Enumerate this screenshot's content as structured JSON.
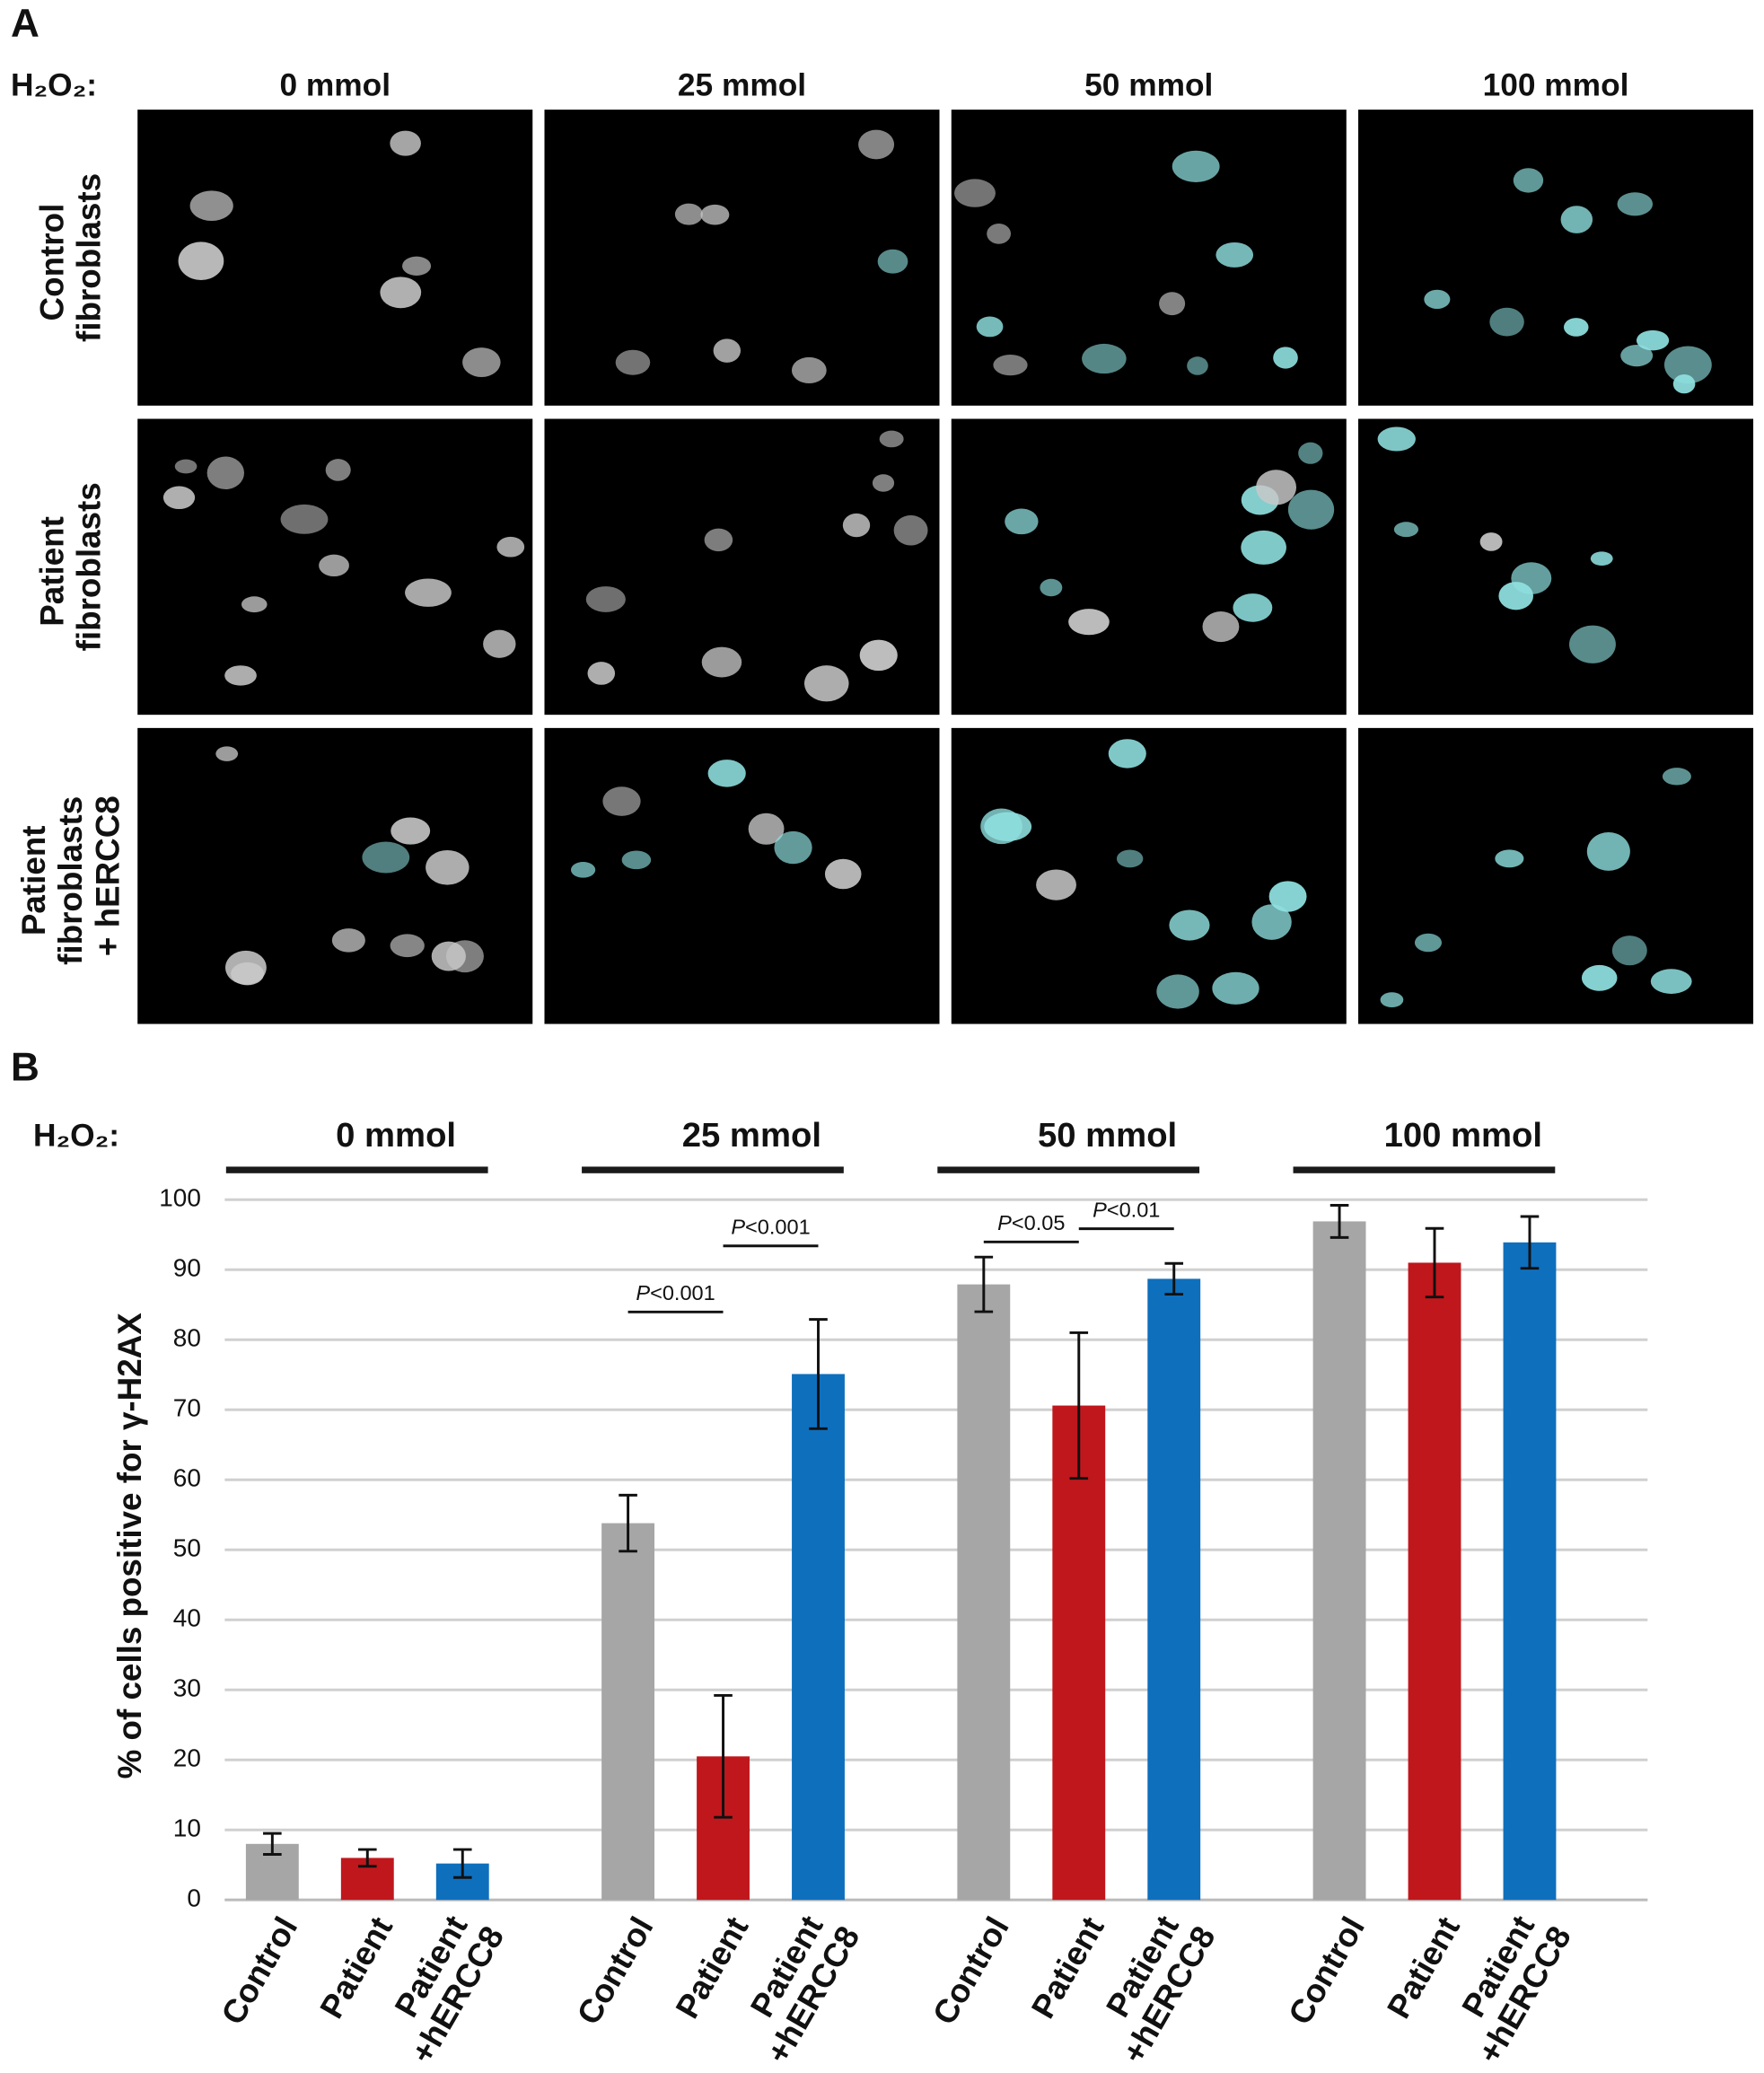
{
  "panel_a": {
    "label": "A",
    "treatment_label": "H₂O₂:",
    "columns": [
      "0 mmol",
      "25 mmol",
      "50 mmol",
      "100 mmol"
    ],
    "rows": [
      "Control fibroblasts",
      "Patient fibroblasts",
      "Patient fibroblasts + hERCC8"
    ]
  },
  "chart_data": {
    "type": "bar",
    "panel_label": "B",
    "treatment_label": "H₂O₂:",
    "y_label": "% of cells positive for γ-H2AX",
    "categories": [
      "0 mmol",
      "25 mmol",
      "50 mmol",
      "100 mmol"
    ],
    "series": [
      {
        "name": "Control",
        "color": "#a6a6a6",
        "values": [
          8,
          53.8,
          87.9,
          96.9
        ],
        "errors": [
          1.5,
          4,
          3.9,
          2.3
        ]
      },
      {
        "name": "Patient",
        "color": "#c0171c",
        "values": [
          6,
          20.5,
          70.6,
          91
        ],
        "errors": [
          1.2,
          8.7,
          10.4,
          4.9
        ]
      },
      {
        "name": "Patient +hERCC8",
        "color": "#0e6fbd",
        "values": [
          5.2,
          75.1,
          88.7,
          93.9
        ],
        "errors": [
          2,
          7.8,
          2.2,
          3.7
        ]
      }
    ],
    "annotations": [
      "P<0.001",
      "P<0.001",
      "P<0.05",
      "P<0.01"
    ],
    "ylim": [
      0,
      100
    ],
    "yticks": [
      0,
      10,
      20,
      30,
      40,
      50,
      60,
      70,
      80,
      90,
      100
    ],
    "grid": true
  }
}
